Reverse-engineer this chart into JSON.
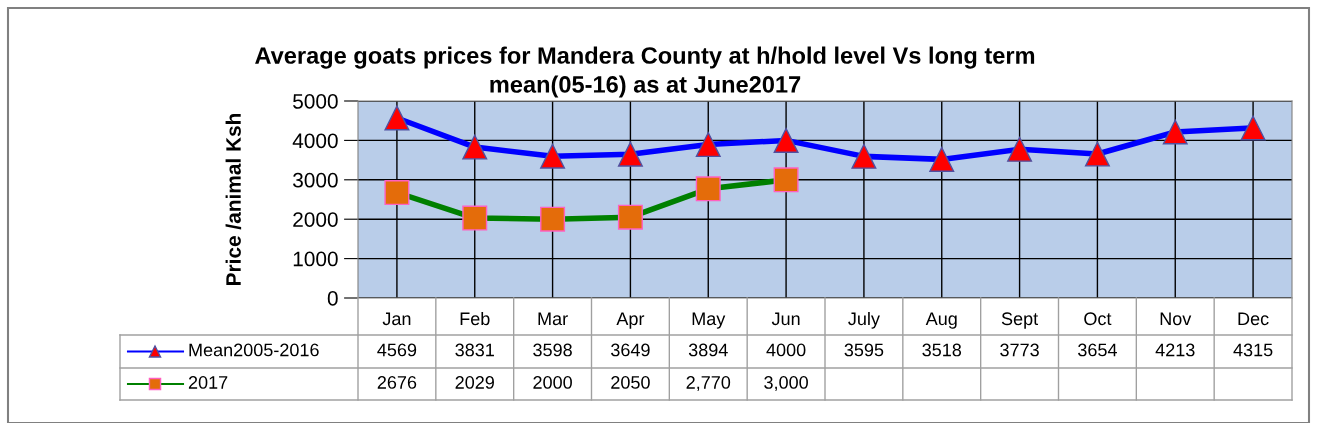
{
  "chart_data": {
    "type": "line",
    "title": "Average goats prices for Mandera County at h/hold level Vs long term\nmean(05-16) as at June2017",
    "ylabel": "Price /animal Ksh",
    "categories": [
      "Jan",
      "Feb",
      "Mar",
      "Apr",
      "May",
      "Jun",
      "July",
      "Aug",
      "Sept",
      "Oct",
      "Nov",
      "Dec"
    ],
    "series": [
      {
        "name": "Mean2005-2016",
        "color": "#0000ff",
        "marker": "triangle",
        "values": [
          4569,
          3831,
          3598,
          3649,
          3894,
          4000,
          3595,
          3518,
          3773,
          3654,
          4213,
          4315
        ],
        "value_labels": [
          "4569",
          "3831",
          "3598",
          "3649",
          "3894",
          "4000",
          "3595",
          "3518",
          "3773",
          "3654",
          "4213",
          "4315"
        ]
      },
      {
        "name": "2017",
        "color": "#008000",
        "marker": "square",
        "values": [
          2676,
          2029,
          2000,
          2050,
          2770,
          3000,
          null,
          null,
          null,
          null,
          null,
          null
        ],
        "value_labels": [
          "2676",
          "2029",
          "2000",
          "2050",
          "2,770",
          "3,000",
          null,
          null,
          null,
          null,
          null,
          null
        ]
      }
    ],
    "ylim": [
      0,
      5000
    ],
    "yticks": [
      0,
      1000,
      2000,
      3000,
      4000,
      5000
    ],
    "grid": true,
    "legend": "bottom",
    "line_style": "solid"
  }
}
